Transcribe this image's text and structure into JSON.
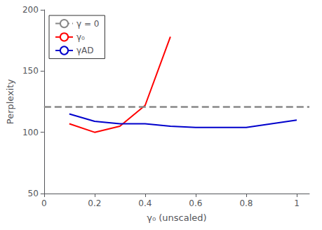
{
  "chart_data": {
    "type": "line",
    "xlabel": "γ₀ (unscaled)",
    "ylabel": "Perplexity",
    "xlim": [
      0,
      1.05
    ],
    "xticks": [
      {
        "value": 0,
        "label": "0"
      },
      0.2,
      0.4,
      0.6,
      0.8,
      {
        "value": 1,
        "label": "1"
      }
    ],
    "ylim": [
      50,
      200
    ],
    "yticks": [
      50,
      100,
      150,
      200
    ],
    "grid": false,
    "legend": "upper left",
    "series": [
      {
        "name": "γ = 0",
        "type": "hline",
        "color": "#888888",
        "line_style": "dashed",
        "values": [
          121
        ]
      },
      {
        "name": "γ₀",
        "type": "line",
        "color": "#ff0000",
        "line_style": "solid",
        "x": [
          0.1,
          0.2,
          0.3,
          0.4,
          0.5
        ],
        "values": [
          107,
          100,
          105,
          122,
          178
        ]
      },
      {
        "name": "γAD",
        "type": "line",
        "color": "#0000cc",
        "line_style": "solid",
        "x": [
          0.1,
          0.2,
          0.3,
          0.4,
          0.5,
          0.6,
          0.7,
          0.8,
          0.9,
          1.0
        ],
        "values": [
          115,
          109,
          107,
          107,
          105,
          104,
          104,
          104,
          107,
          110
        ]
      }
    ]
  }
}
